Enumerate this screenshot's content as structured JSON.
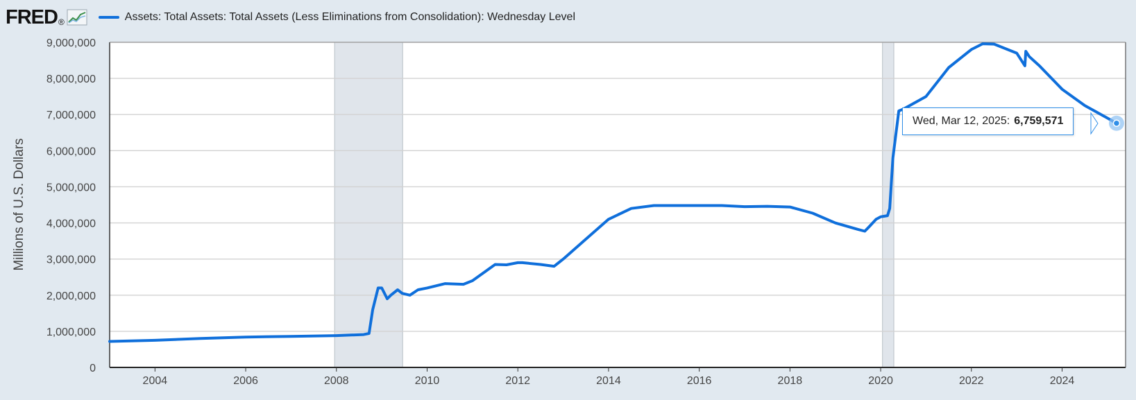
{
  "header": {
    "logo_text": "FRED",
    "logo_mark": "®",
    "legend_label": "Assets: Total Assets: Total Assets (Less Eliminations from Consolidation): Wednesday Level"
  },
  "tooltip": {
    "date": "Wed, Mar 12, 2025:",
    "value": "6,759,571"
  },
  "colors": {
    "series": "#0f6fdb",
    "recession": "#e0e5eb",
    "background": "#e1e9f0"
  },
  "chart_data": {
    "type": "line",
    "title": "",
    "xlabel": "",
    "ylabel": "Millions of U.S. Dollars",
    "xlim": [
      2003.0,
      2025.4
    ],
    "ylim": [
      0,
      9000000
    ],
    "xticks": [
      {
        "value": 2004,
        "label": "2004"
      },
      {
        "value": 2006,
        "label": "2006"
      },
      {
        "value": 2008,
        "label": "2008"
      },
      {
        "value": 2010,
        "label": "2010"
      },
      {
        "value": 2012,
        "label": "2012"
      },
      {
        "value": 2014,
        "label": "2014"
      },
      {
        "value": 2016,
        "label": "2016"
      },
      {
        "value": 2018,
        "label": "2018"
      },
      {
        "value": 2020,
        "label": "2020"
      },
      {
        "value": 2022,
        "label": "2022"
      },
      {
        "value": 2024,
        "label": "2024"
      }
    ],
    "yticks": [
      {
        "value": 0,
        "label": "0"
      },
      {
        "value": 1000000,
        "label": "1,000,000"
      },
      {
        "value": 2000000,
        "label": "2,000,000"
      },
      {
        "value": 3000000,
        "label": "3,000,000"
      },
      {
        "value": 4000000,
        "label": "4,000,000"
      },
      {
        "value": 5000000,
        "label": "5,000,000"
      },
      {
        "value": 6000000,
        "label": "6,000,000"
      },
      {
        "value": 7000000,
        "label": "7,000,000"
      },
      {
        "value": 8000000,
        "label": "8,000,000"
      },
      {
        "value": 9000000,
        "label": "9,000,000"
      }
    ],
    "grid": true,
    "recessions": [
      {
        "start": 2007.96,
        "end": 2009.46
      },
      {
        "start": 2020.04,
        "end": 2020.29
      }
    ],
    "series": [
      {
        "color": "#0f6fdb",
        "x": [
          2003.0,
          2004.0,
          2005.0,
          2006.0,
          2007.0,
          2008.0,
          2008.6,
          2008.72,
          2008.8,
          2008.92,
          2009.0,
          2009.12,
          2009.2,
          2009.35,
          2009.45,
          2009.62,
          2009.8,
          2010.0,
          2010.4,
          2010.8,
          2011.0,
          2011.5,
          2011.75,
          2012.0,
          2012.1,
          2012.5,
          2012.8,
          2013.0,
          2013.5,
          2014.0,
          2014.5,
          2015.0,
          2015.5,
          2016.0,
          2016.5,
          2017.0,
          2017.5,
          2018.0,
          2018.5,
          2019.0,
          2019.5,
          2019.65,
          2019.75,
          2019.9,
          2020.0,
          2020.15,
          2020.2,
          2020.27,
          2020.4,
          2020.5,
          2021.0,
          2021.5,
          2022.0,
          2022.25,
          2022.5,
          2023.0,
          2023.18,
          2023.2,
          2023.28,
          2023.5,
          2024.0,
          2024.5,
          2025.0,
          2025.2
        ],
        "y": [
          720000,
          750000,
          800000,
          840000,
          860000,
          880000,
          910000,
          940000,
          1600000,
          2200000,
          2200000,
          1900000,
          2000000,
          2150000,
          2050000,
          2000000,
          2150000,
          2200000,
          2320000,
          2300000,
          2400000,
          2850000,
          2840000,
          2900000,
          2900000,
          2850000,
          2800000,
          3000000,
          3550000,
          4100000,
          4400000,
          4480000,
          4480000,
          4480000,
          4480000,
          4450000,
          4460000,
          4440000,
          4270000,
          4000000,
          3820000,
          3770000,
          3900000,
          4100000,
          4170000,
          4200000,
          4400000,
          5800000,
          7100000,
          7150000,
          7500000,
          8300000,
          8800000,
          8960000,
          8950000,
          8700000,
          8350000,
          8750000,
          8600000,
          8350000,
          7700000,
          7250000,
          6900000,
          6760000
        ]
      }
    ],
    "highlight": {
      "x": 2025.2,
      "y": 6759571
    }
  }
}
